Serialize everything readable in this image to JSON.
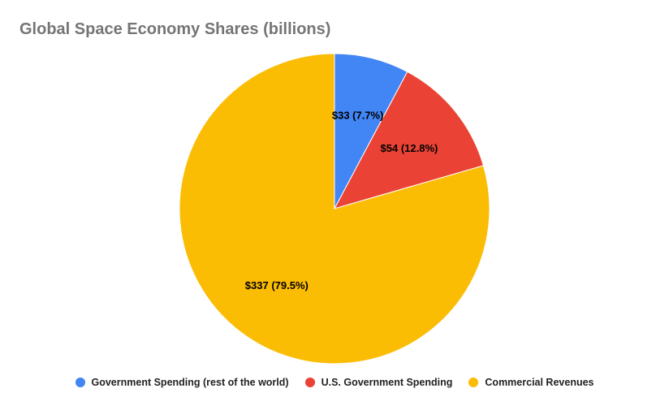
{
  "chart_data": {
    "type": "pie",
    "title": "Global Space Economy Shares (billions)",
    "legend_position": "bottom",
    "slices": [
      {
        "name": "Government Spending (rest of the world)",
        "value": 33,
        "label": "$33 (7.7%)",
        "color": "#4285f4"
      },
      {
        "name": "U.S. Government Spending",
        "value": 54,
        "label": "$54 (12.8%)",
        "color": "#ea4335"
      },
      {
        "name": "Commercial Revenues",
        "value": 337,
        "label": "$337 (79.5%)",
        "color": "#fbbc04"
      }
    ]
  }
}
